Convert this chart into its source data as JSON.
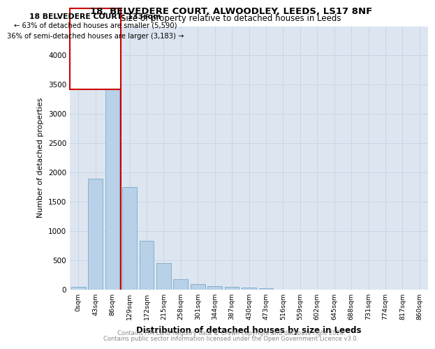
{
  "title_line1": "18, BELVEDERE COURT, ALWOODLEY, LEEDS, LS17 8NF",
  "title_line2": "Size of property relative to detached houses in Leeds",
  "xlabel": "Distribution of detached houses by size in Leeds",
  "ylabel": "Number of detached properties",
  "bar_labels": [
    "0sqm",
    "43sqm",
    "86sqm",
    "129sqm",
    "172sqm",
    "215sqm",
    "258sqm",
    "301sqm",
    "344sqm",
    "387sqm",
    "430sqm",
    "473sqm",
    "516sqm",
    "559sqm",
    "602sqm",
    "645sqm",
    "688sqm",
    "731sqm",
    "774sqm",
    "817sqm",
    "860sqm"
  ],
  "bar_values": [
    50,
    1900,
    3500,
    1750,
    830,
    450,
    175,
    100,
    60,
    50,
    40,
    20,
    5,
    3,
    2,
    1,
    1,
    1,
    0,
    0,
    0
  ],
  "bar_color": "#b8d0e8",
  "bar_edgecolor": "#7aaac8",
  "property_label": "18 BELVEDERE COURT: 133sqm",
  "annotation_line1": "← 63% of detached houses are smaller (5,590)",
  "annotation_line2": "36% of semi-detached houses are larger (3,183) →",
  "vline_color": "#cc0000",
  "vline_x": 2.5,
  "annotation_box_color": "#cc0000",
  "ymax": 4500,
  "yticks": [
    0,
    500,
    1000,
    1500,
    2000,
    2500,
    3000,
    3500,
    4000
  ],
  "grid_color": "#c8d4e8",
  "background_color": "#dde6f0",
  "footer_line1": "Contains HM Land Registry data © Crown copyright and database right 2024.",
  "footer_line2": "Contains public sector information licensed under the Open Government Licence v3.0.",
  "footer_color": "#888888"
}
